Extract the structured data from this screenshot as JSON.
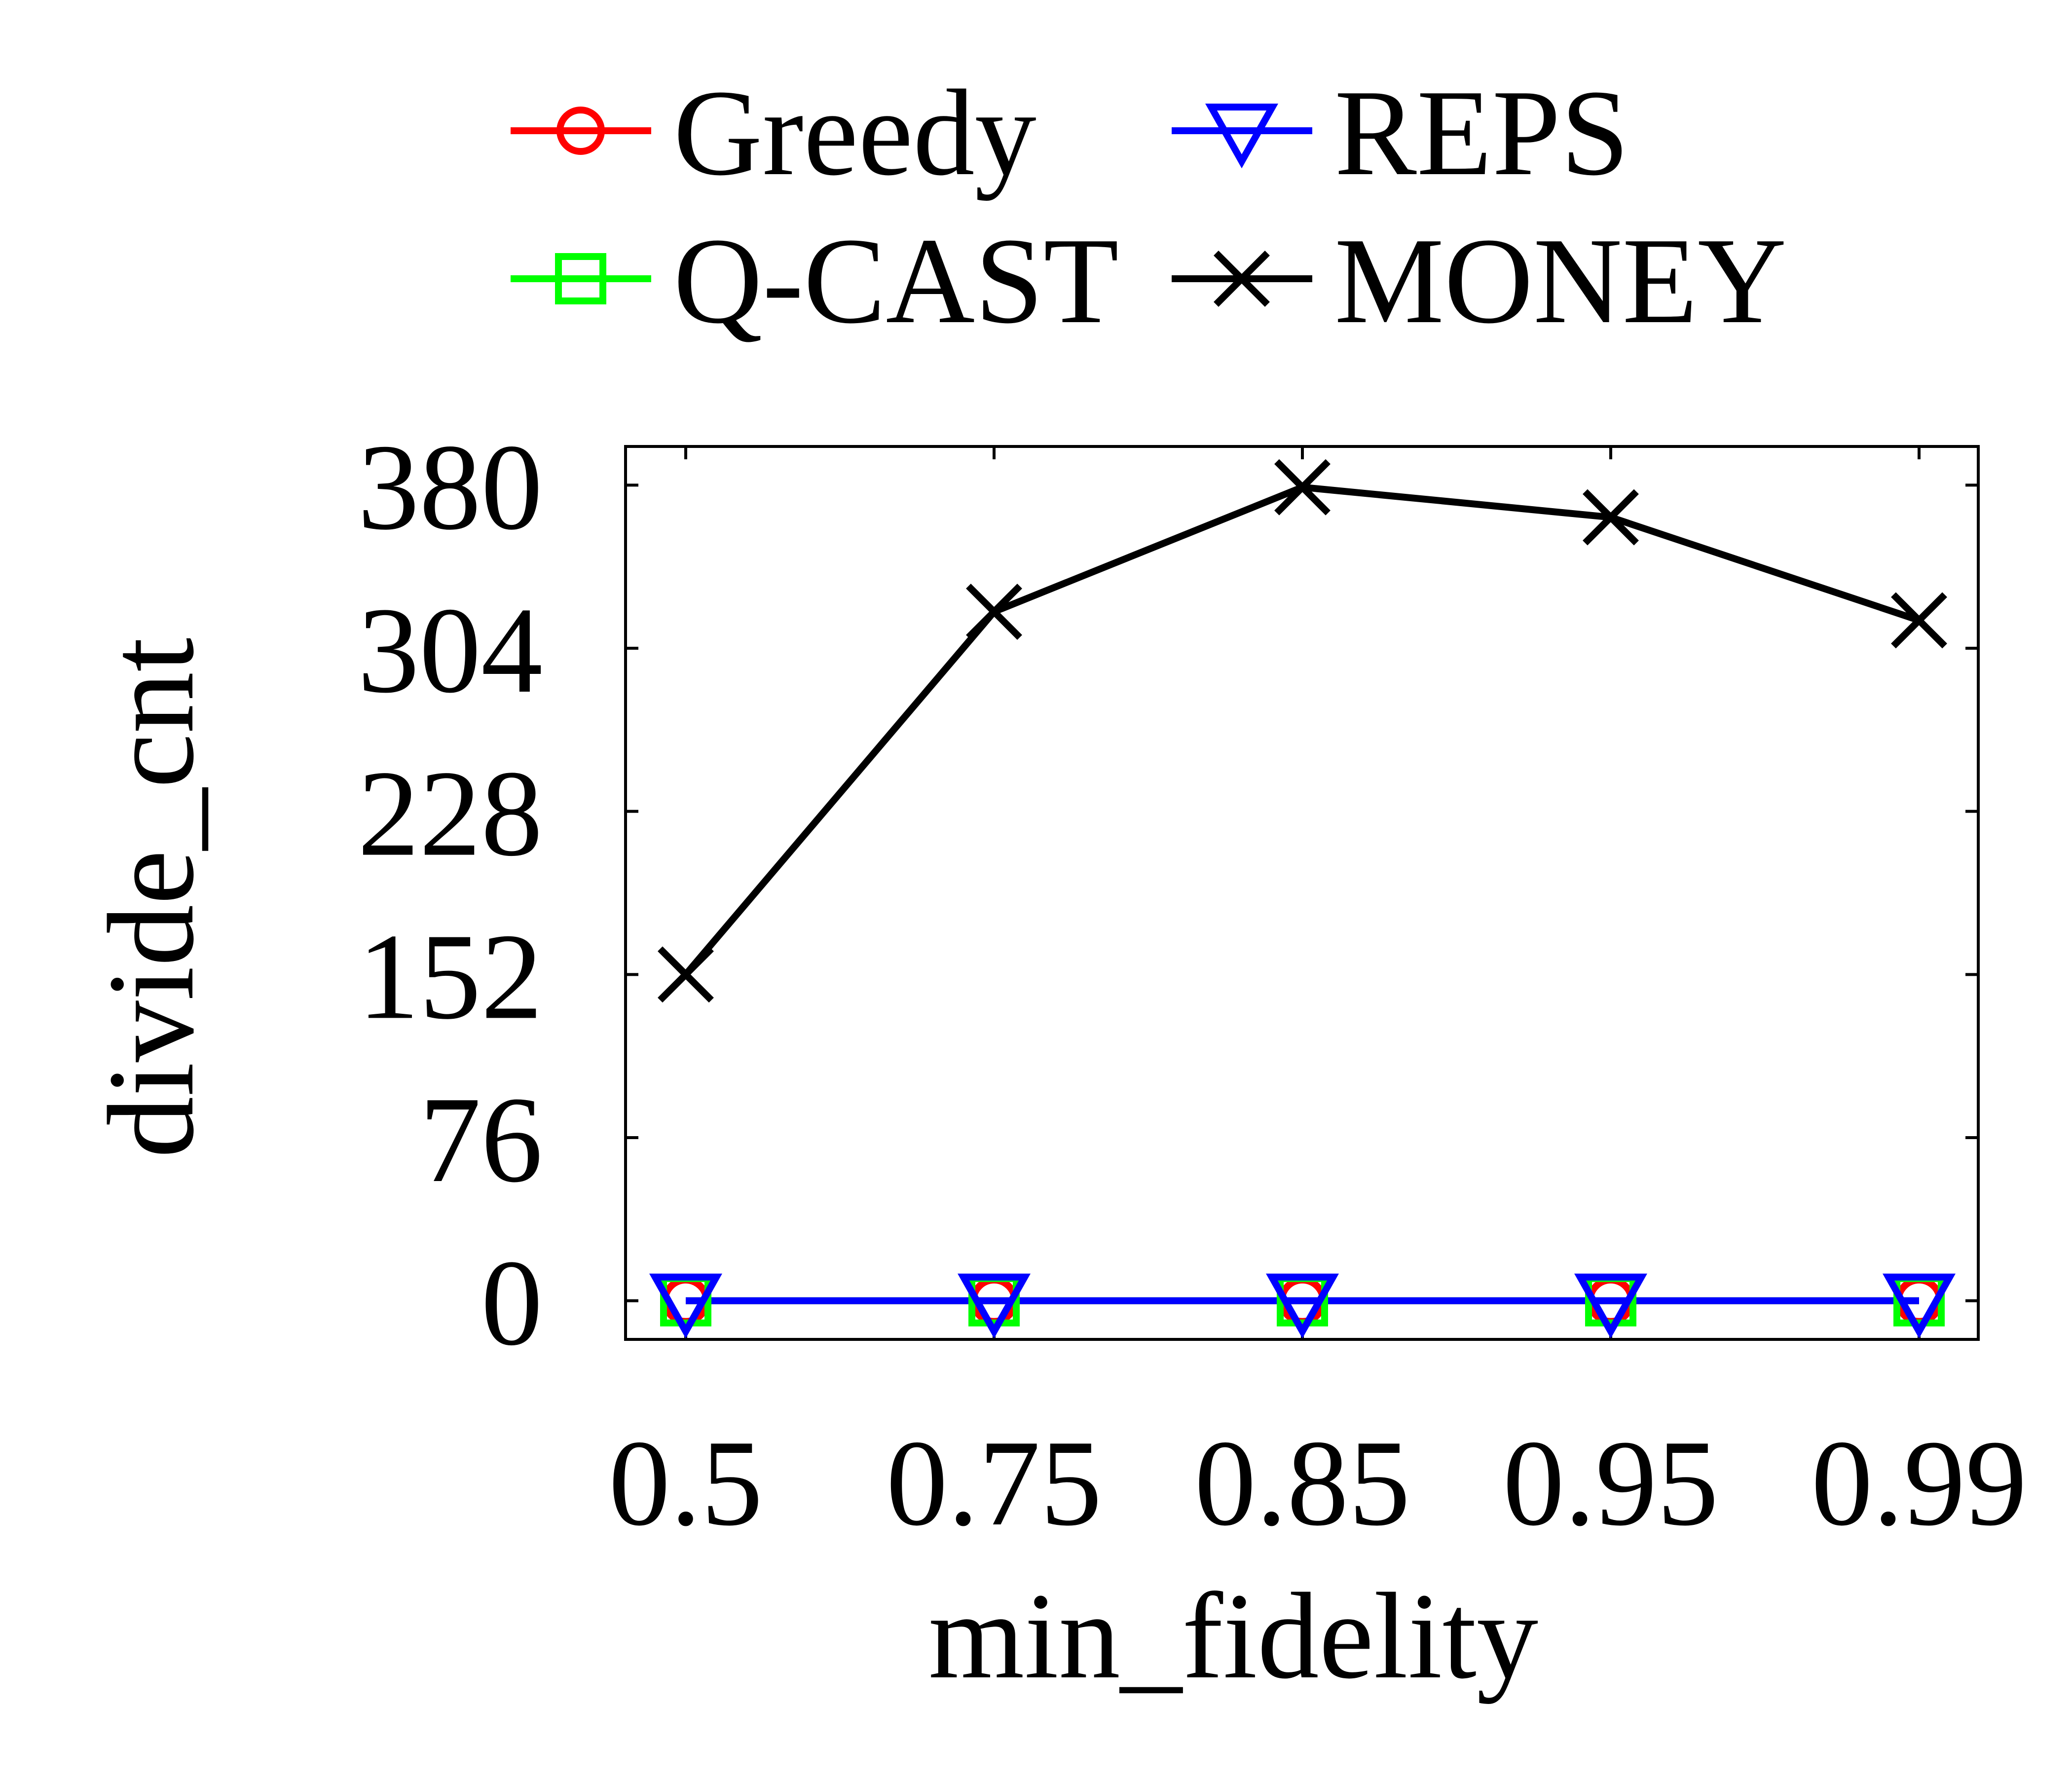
{
  "chart_data": {
    "type": "line",
    "xlabel": "min_fidelity",
    "ylabel": "divide_cnt",
    "categories": [
      "0.5",
      "0.75",
      "0.85",
      "0.95",
      "0.99"
    ],
    "yticks": [
      "0",
      "76",
      "152",
      "228",
      "304",
      "380"
    ],
    "ylim": [
      -18,
      398
    ],
    "grid": false,
    "legend_position": "top",
    "series": [
      {
        "name": "Greedy",
        "values": [
          0,
          0,
          0,
          0,
          0
        ],
        "color": "#ff0000",
        "marker": "circle"
      },
      {
        "name": "REPS",
        "values": [
          0,
          0,
          0,
          0,
          0
        ],
        "color": "#0000ff",
        "marker": "triangle-down"
      },
      {
        "name": "Q-CAST",
        "values": [
          0,
          0,
          0,
          0,
          0
        ],
        "color": "#00ff00",
        "marker": "square"
      },
      {
        "name": "MONEY",
        "values": [
          152,
          321,
          379,
          365,
          317
        ],
        "color": "#000000",
        "marker": "x"
      }
    ]
  }
}
